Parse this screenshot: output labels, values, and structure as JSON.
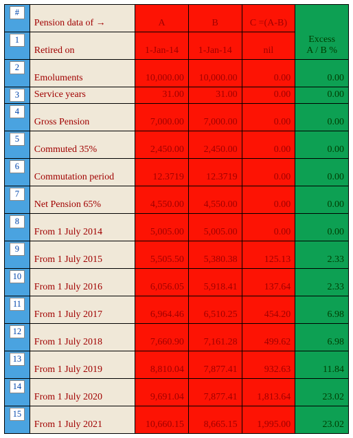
{
  "colors": {
    "beige": "#f0e8d8",
    "red": "#fd1304",
    "green": "#0da053",
    "blue": "#4aa3e0",
    "darkRed": "#a00000",
    "darkGreen": "#003c00",
    "darkBlue": "#0044aa",
    "black": "#000000"
  },
  "header": {
    "hash": "#",
    "title_pre": "Pension data of ",
    "arrow": "→",
    "colA": "A",
    "colB": "B",
    "colC": "C =(A-B)",
    "excess_line1": "Excess",
    "excess_line2": "A / B %"
  },
  "rows": [
    {
      "n": "1",
      "h": "tall",
      "label": "Retired on",
      "a": "1-Jan-14",
      "b": "1-Jan-14",
      "c": "nil",
      "e": "",
      "a_align": "center",
      "b_align": "center",
      "c_align": "center"
    },
    {
      "n": "2",
      "h": "tall",
      "label": "Emoluments",
      "a": "10,000.00",
      "b": "10,000.00",
      "c": "0.00",
      "e": "0.00",
      "a_align": "right",
      "b_align": "right",
      "c_align": "right"
    },
    {
      "n": "3",
      "h": "short",
      "label": "Service years",
      "a": "31.00",
      "b": "31.00",
      "c": "0.00",
      "e": "0.00",
      "a_align": "right",
      "b_align": "right",
      "c_align": "right"
    },
    {
      "n": "4",
      "h": "tall",
      "label": "Gross Pension",
      "a": "7,000.00",
      "b": "7,000.00",
      "c": "0.00",
      "e": "0.00",
      "a_align": "right",
      "b_align": "right",
      "c_align": "right"
    },
    {
      "n": "5",
      "h": "tall",
      "label": "Commuted 35%",
      "a": "2,450.00",
      "b": "2,450.00",
      "c": "0.00",
      "e": "0.00",
      "a_align": "right",
      "b_align": "right",
      "c_align": "right"
    },
    {
      "n": "6",
      "h": "tall",
      "label": "Commutation period",
      "a": "12.3719",
      "b": "12.3719",
      "c": "0.00",
      "e": "0.00",
      "a_align": "right",
      "b_align": "right",
      "c_align": "right"
    },
    {
      "n": "7",
      "h": "tall",
      "label": "Net Pension 65%",
      "a": "4,550.00",
      "b": "4,550.00",
      "c": "0.00",
      "e": "0.00",
      "a_align": "right",
      "b_align": "right",
      "c_align": "right"
    },
    {
      "n": "8",
      "h": "tall",
      "label": "From 1 July 2014",
      "a": "5,005.00",
      "b": "5,005.00",
      "c": "0.00",
      "e": "0.00",
      "a_align": "right",
      "b_align": "right",
      "c_align": "right"
    },
    {
      "n": "9",
      "h": "tall",
      "label": "From 1 July 2015",
      "a": "5,505.50",
      "b": "5,380.38",
      "c": "125.13",
      "e": "2.33",
      "a_align": "right",
      "b_align": "right",
      "c_align": "right"
    },
    {
      "n": "10",
      "h": "tall",
      "label": "From 1 July 2016",
      "a": "6,056.05",
      "b": "5,918.41",
      "c": "137.64",
      "e": "2.33",
      "a_align": "right",
      "b_align": "right",
      "c_align": "right"
    },
    {
      "n": "11",
      "h": "tall",
      "label": "From 1 July 2017",
      "a": "6,964.46",
      "b": "6,510.25",
      "c": "454.20",
      "e": "6.98",
      "a_align": "right",
      "b_align": "right",
      "c_align": "right"
    },
    {
      "n": "12",
      "h": "tall",
      "label": "From 1 July 2018",
      "a": "7,660.90",
      "b": "7,161.28",
      "c": "499.62",
      "e": "6.98",
      "a_align": "right",
      "b_align": "right",
      "c_align": "right"
    },
    {
      "n": "13",
      "h": "tall",
      "label": "From 1 July 2019",
      "a": "8,810.04",
      "b": "7,877.41",
      "c": "932.63",
      "e": "11.84",
      "a_align": "right",
      "b_align": "right",
      "c_align": "right"
    },
    {
      "n": "14",
      "h": "tall",
      "label": "From 1 July 2020",
      "a": "9,691.04",
      "b": "7,877.41",
      "c": "1,813.64",
      "e": "23.02",
      "a_align": "right",
      "b_align": "right",
      "c_align": "right"
    },
    {
      "n": "15",
      "h": "tall",
      "label": "From 1 July 2021",
      "a": "10,660.15",
      "b": "8,665.15",
      "c": "1,995.00",
      "e": "23.02",
      "a_align": "right",
      "b_align": "right",
      "c_align": "right"
    }
  ],
  "fontsize": 14
}
